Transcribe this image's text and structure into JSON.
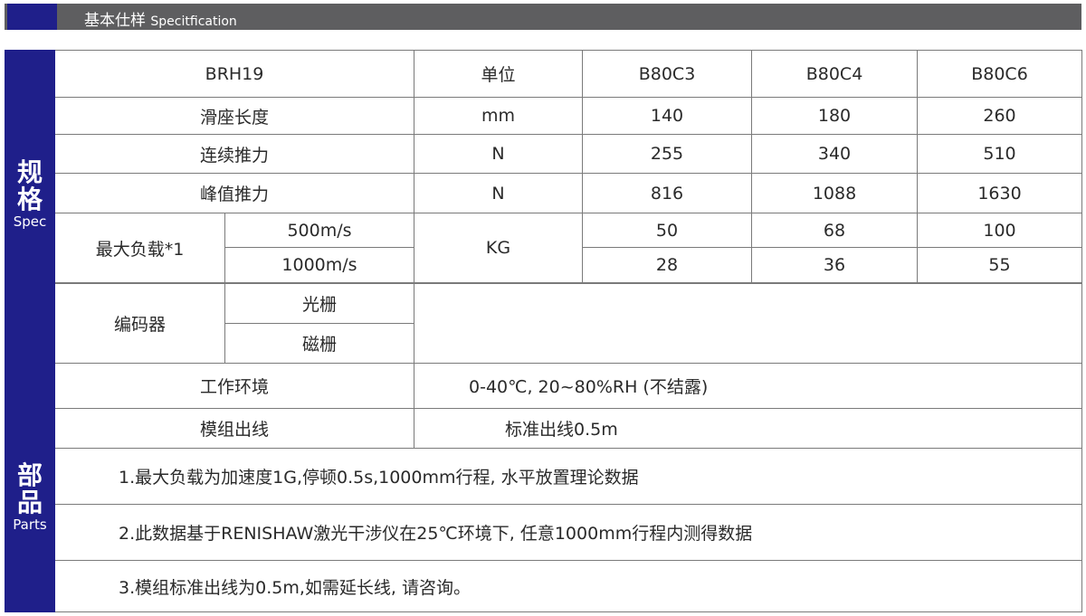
{
  "header": {
    "title_cn": "基本仕样",
    "title_en": "Specitfication"
  },
  "sections": {
    "spec": {
      "cn_1": "规",
      "cn_2": "格",
      "en": "Spec"
    },
    "parts": {
      "cn_1": "部",
      "cn_2": "品",
      "en": "Parts"
    }
  },
  "table": {
    "head": {
      "model": "BRH19",
      "unit": "单位",
      "cols": [
        "B80C3",
        "B80C4",
        "B80C6"
      ]
    },
    "rows": [
      {
        "label": "滑座长度",
        "unit": "mm",
        "values": [
          "140",
          "180",
          "260"
        ]
      },
      {
        "label": "连续推力",
        "unit": "N",
        "values": [
          "255",
          "340",
          "510"
        ]
      },
      {
        "label": "峰值推力",
        "unit": "N",
        "values": [
          "816",
          "1088",
          "1630"
        ]
      }
    ],
    "max_load": {
      "label": "最大负载*1",
      "unit": "KG",
      "sub": [
        {
          "label": "500m/s",
          "values": [
            "50",
            "68",
            "100"
          ]
        },
        {
          "label": "1000m/s",
          "values": [
            "28",
            "36",
            "55"
          ]
        }
      ]
    },
    "encoder": {
      "label": "编码器",
      "options": [
        "光栅",
        "磁栅"
      ]
    },
    "environment": {
      "label": "工作环境",
      "value": "0-40℃, 20~80%RH (不结露)"
    },
    "cable": {
      "label": "模组出线",
      "value": "标准出线0.5m"
    },
    "notes": [
      "1.最大负载为加速度1G,停顿0.5s,1000mm行程, 水平放置理论数据",
      "2.此数据基于RENISHAW激光干涉仪在25℃环境下, 任意1000mm行程内测得数据",
      "3.模组标准出线为0.5m,如需延长线, 请咨询。"
    ]
  },
  "colors": {
    "accent": "#1f1f8a",
    "header_bar": "#5e5e60"
  }
}
